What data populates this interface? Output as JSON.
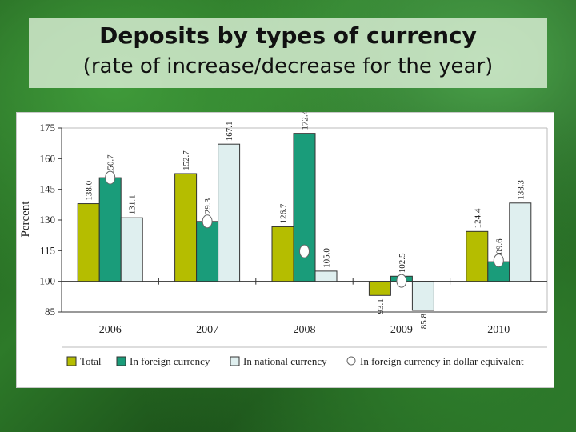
{
  "slide": {
    "title": "Deposits by types of currency",
    "subtitle": "(rate of increase/decrease for the year)"
  },
  "chart_data": {
    "type": "bar",
    "ylabel": "Percent",
    "ylim": [
      85,
      175
    ],
    "yticks": [
      85,
      100,
      115,
      130,
      145,
      160,
      175
    ],
    "baseline": 100,
    "categories": [
      "2006",
      "2007",
      "2008",
      "2009",
      "2010"
    ],
    "series": [
      {
        "name": "Total",
        "color": "#b5bd00",
        "values": [
          138.0,
          152.7,
          126.7,
          93.1,
          124.4
        ],
        "labels": [
          "138.0",
          "152.7",
          "126.7",
          "93.1",
          "124.4"
        ]
      },
      {
        "name": "In foreign currency",
        "color": "#1a9c7a",
        "values": [
          150.7,
          129.3,
          172.4,
          102.5,
          109.6
        ],
        "labels": [
          "150.7",
          "129.3",
          "172.4",
          "102.5",
          "109.6"
        ]
      },
      {
        "name": "In national currency",
        "color": "#dfefef",
        "values": [
          131.1,
          167.1,
          105.0,
          85.8,
          138.3
        ],
        "labels": [
          "131.1",
          "167.1",
          "105.0",
          "85.8",
          "138.3"
        ]
      }
    ],
    "dollar_equivalent": {
      "name": "In foreign currency in dollar equivalent",
      "values": [
        150.7,
        129.3,
        114.7,
        100.2,
        110.2
      ]
    },
    "legend_position": "bottom"
  }
}
